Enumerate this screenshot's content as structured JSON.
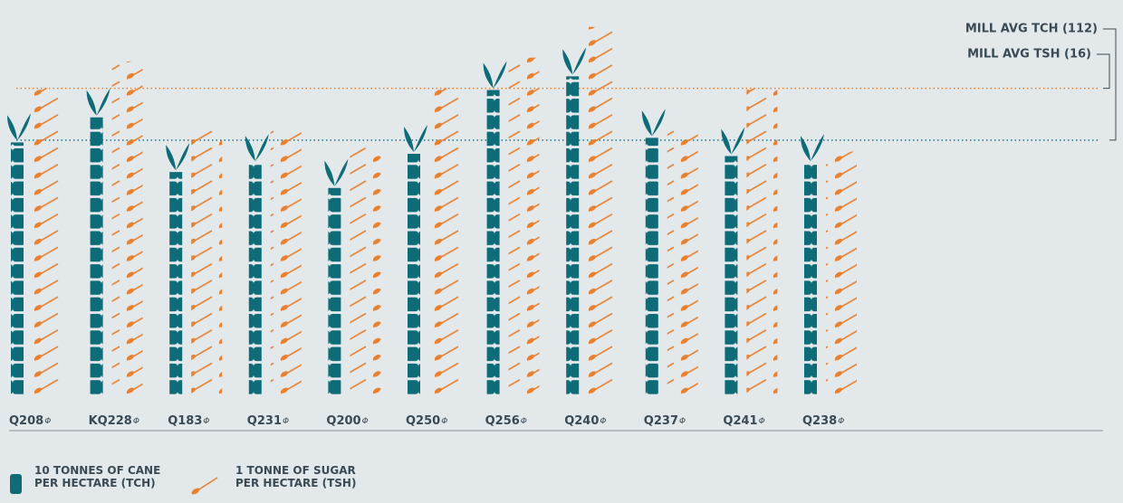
{
  "chart_data": {
    "type": "pictograph",
    "categories": [
      "Q208",
      "KQ228",
      "Q183",
      "Q231",
      "Q200",
      "Q250",
      "Q256",
      "Q240",
      "Q237",
      "Q241",
      "Q238"
    ],
    "category_mark": "Φ",
    "series": [
      {
        "name": "10 TONNES OF CANE PER HECTARE (TCH)",
        "color": "#0e6b78",
        "values": [
          111,
          122,
          98,
          102,
          91,
          106,
          134,
          140,
          113,
          105,
          102
        ]
      },
      {
        "name": "1 TONNE OF SUGAR PER HECTARE (TSH)",
        "color": "#e8812f",
        "axis": "y2",
        "values": [
          16,
          17.4,
          13.8,
          13.8,
          12.9,
          16,
          17.6,
          19.2,
          13.8,
          16,
          12.7
        ]
      }
    ],
    "ylim": [
      0,
      160
    ],
    "y2lim": [
      0,
      19
    ],
    "reference_lines": [
      {
        "label": "MILL AVG TCH (112)",
        "value": 112,
        "axis": "y",
        "color": "#2f7f8c"
      },
      {
        "label": "MILL AVG TSH (16)",
        "value": 16,
        "axis": "y2",
        "color": "#e8812f"
      }
    ]
  }
}
